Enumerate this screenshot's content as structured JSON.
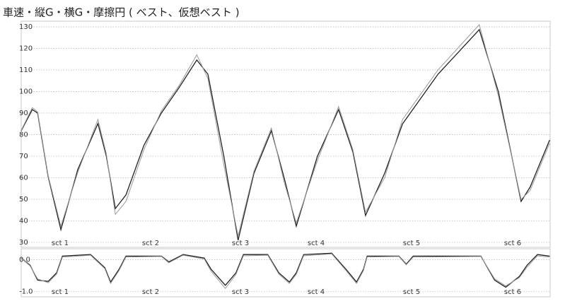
{
  "chart_data": [
    {
      "type": "line",
      "title": "車速・縦G・横G・摩擦円 ( ベスト、仮想ベスト )",
      "x": [
        0,
        2.1,
        3.1,
        5.1,
        7.5,
        10.7,
        14.5,
        16.1,
        17.8,
        19.8,
        23.2,
        26.5,
        29.9,
        33.2,
        35.3,
        38.3,
        41.0,
        44.0,
        47.3,
        49.7,
        52.0,
        56.0,
        60.0,
        62.7,
        65.1,
        68.7,
        72.1,
        78.8,
        86.6,
        90.2,
        94.5,
        96.2,
        99.9
      ],
      "xlim": [
        0,
        100
      ],
      "ylim": [
        27.7,
        132.6
      ],
      "yticks": [
        30,
        40,
        50,
        60,
        70,
        80,
        90,
        100,
        110,
        120,
        130
      ],
      "grid": true,
      "sectors": [
        "sct 1",
        "sct 2",
        "sct 3",
        "sct 4",
        "sct 5",
        "sct 6"
      ],
      "series": [
        {
          "color": "#222222",
          "values": [
            81.8,
            91.6,
            90,
            60.5,
            35.9,
            63.8,
            85.1,
            70,
            45.7,
            52,
            75,
            90,
            102,
            114.6,
            108,
            70,
            31,
            62,
            81.8,
            60,
            37.5,
            70,
            91.6,
            72,
            42.5,
            62,
            85,
            108,
            128.7,
            100,
            49,
            55.6,
            77.5
          ]
        },
        {
          "color": "#9a9a9a",
          "values": [
            82,
            92.5,
            90.5,
            61,
            37.5,
            62.5,
            87,
            71,
            43,
            49,
            73,
            91,
            103,
            117,
            106,
            66,
            33,
            63,
            83,
            58,
            39,
            68,
            93,
            73,
            44,
            60,
            87,
            110,
            131,
            98,
            50,
            54,
            76
          ]
        }
      ]
    },
    {
      "type": "line",
      "x": [
        0,
        1.7,
        3.1,
        5.1,
        6.7,
        7.8,
        13.1,
        15.8,
        16.9,
        18.5,
        19.8,
        26.5,
        27.9,
        30.6,
        34.6,
        35.9,
        38.6,
        40.6,
        42.0,
        46.6,
        48.7,
        50.7,
        52.0,
        53.4,
        58.7,
        61.4,
        63.4,
        64.7,
        65.4,
        71.4,
        72.8,
        74.1,
        86.9,
        89.5,
        91.6,
        94.2,
        95.6,
        97.6,
        99.9
      ],
      "xlim": [
        0,
        100
      ],
      "ylim": [
        -1.16,
        0.34
      ],
      "yticks": [
        {
          "value": 0,
          "label": "0.0"
        },
        {
          "value": -1,
          "label": "-1.0"
        }
      ],
      "grid": true,
      "sectors": [
        "sct 1",
        "sct 2",
        "sct 3",
        "sct 4",
        "sct 5",
        "sct 6"
      ],
      "series": [
        {
          "color": "#222222",
          "values": [
            0.05,
            -0.18,
            -0.64,
            -0.68,
            -0.41,
            0.11,
            0.16,
            -0.25,
            -0.7,
            -0.3,
            0.11,
            0.11,
            -0.07,
            0.16,
            0.05,
            -0.3,
            -0.8,
            -0.41,
            0.16,
            0.16,
            -0.41,
            -0.7,
            -0.41,
            0.16,
            0.2,
            -0.3,
            -0.7,
            -0.3,
            0.11,
            0.11,
            -0.14,
            0.11,
            0.11,
            -0.64,
            -0.86,
            -0.52,
            -0.18,
            0.16,
            0.11
          ]
        },
        {
          "color": "#9a9a9a",
          "values": [
            0.05,
            -0.2,
            -0.6,
            -0.72,
            -0.45,
            0.08,
            0.14,
            -0.28,
            -0.74,
            -0.34,
            0.08,
            0.1,
            -0.1,
            0.14,
            0.02,
            -0.36,
            -0.9,
            -0.46,
            0.12,
            0.14,
            -0.45,
            -0.74,
            -0.46,
            0.12,
            0.18,
            -0.34,
            -0.74,
            -0.34,
            0.08,
            0.1,
            -0.16,
            0.08,
            0.1,
            -0.6,
            -0.82,
            -0.56,
            -0.24,
            0.12,
            0.08
          ]
        }
      ]
    }
  ]
}
